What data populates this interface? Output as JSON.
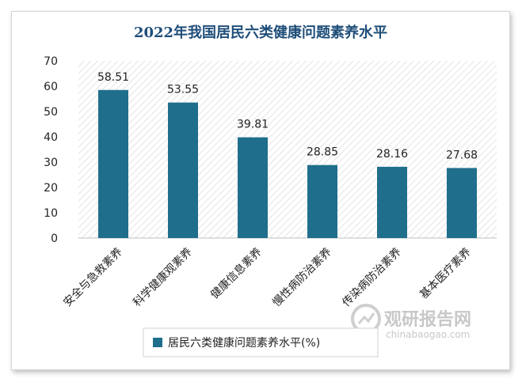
{
  "chart_data": {
    "type": "bar",
    "title": "2022年我国居民六类健康问题素养水平",
    "categories": [
      "安全与急救素养",
      "科学健康观素养",
      "健康信息素养",
      "慢性病防治素养",
      "传染病防治素养",
      "基本医疗素养"
    ],
    "series": [
      {
        "name": "居民六类健康问题素养水平(%)",
        "values": [
          58.51,
          53.55,
          39.81,
          28.85,
          28.16,
          27.68
        ]
      }
    ],
    "ylim": [
      0,
      70
    ],
    "yticks": [
      0,
      10,
      20,
      30,
      40,
      50,
      60,
      70
    ],
    "xlabel": "",
    "ylabel": "",
    "legend_position": "bottom",
    "grid": false,
    "bar_color": "#1f6e8c"
  },
  "watermark": {
    "text_cn": "观研报告网",
    "text_en": "chinabaogao.com"
  }
}
